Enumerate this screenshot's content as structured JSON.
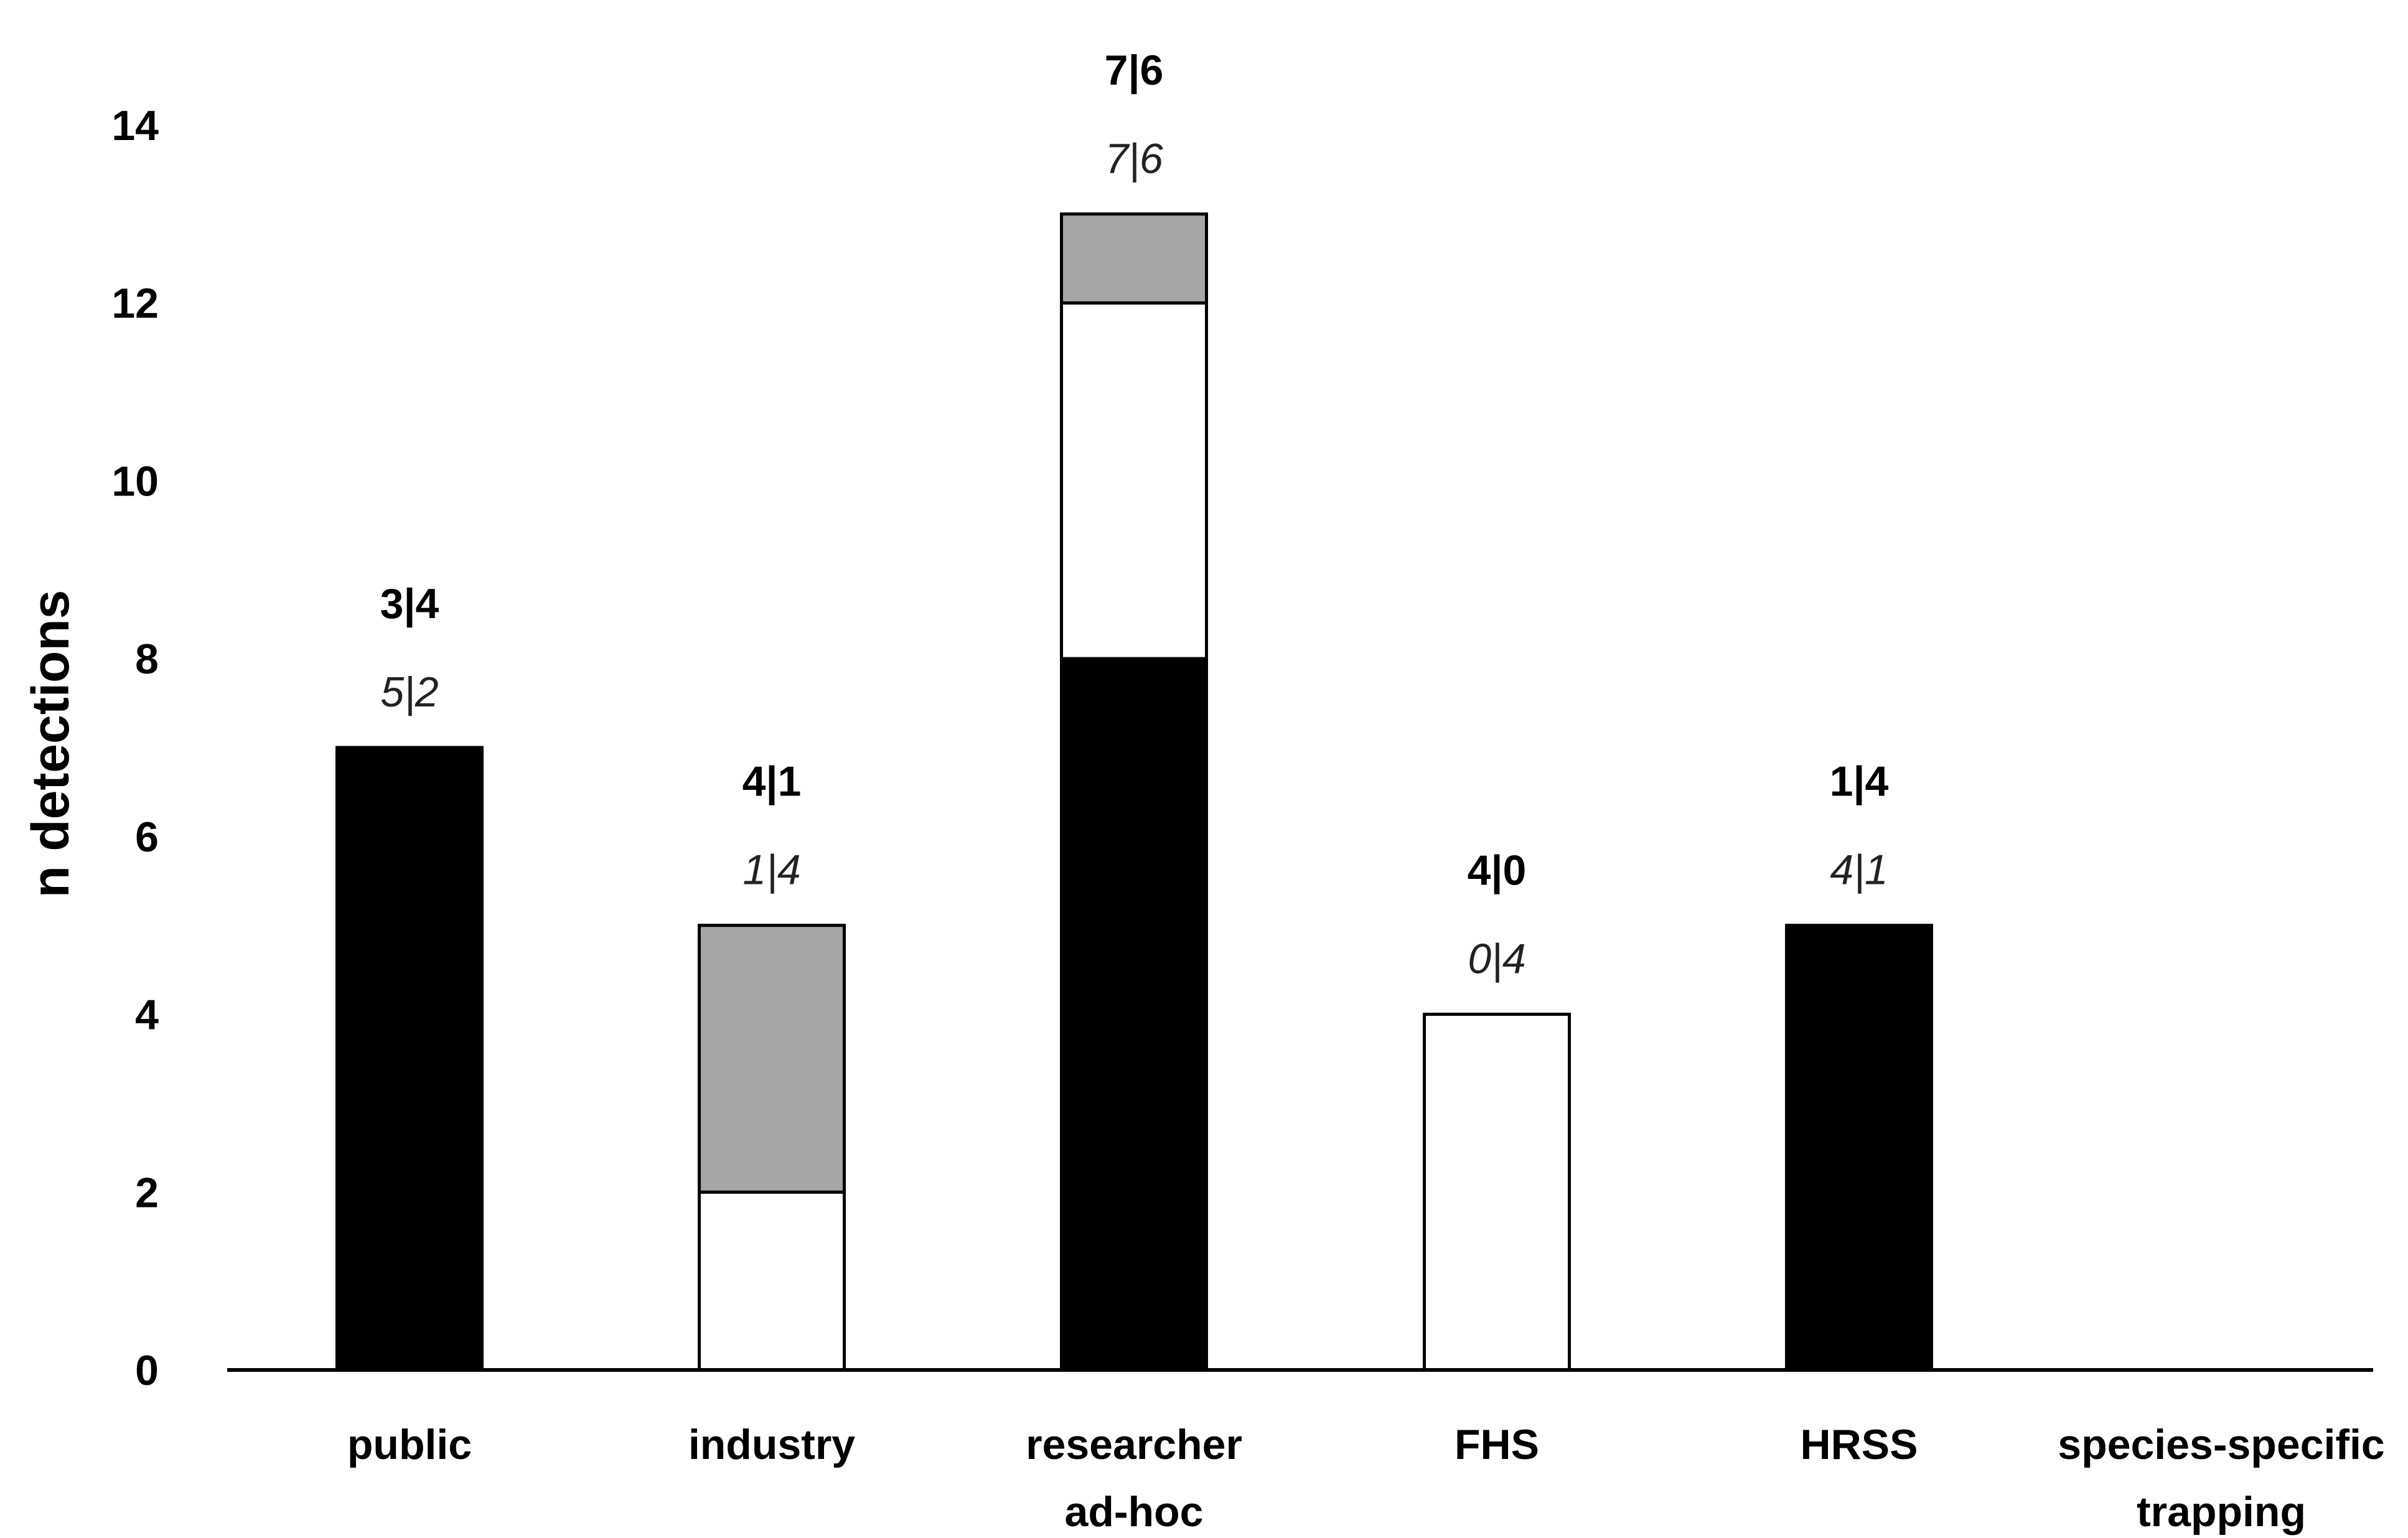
{
  "chart_data": {
    "type": "bar",
    "stacked": true,
    "ylabel": "n detections",
    "xlabel": "",
    "ylim": [
      0,
      14
    ],
    "yticks": [
      0,
      2,
      4,
      6,
      8,
      10,
      12,
      14
    ],
    "grid": false,
    "legend": "none",
    "categories": [
      [
        "public"
      ],
      [
        "industry"
      ],
      [
        "researcher",
        "ad-hoc"
      ],
      [
        "FHS"
      ],
      [
        "HRSS"
      ],
      [
        "species-specific",
        "trapping"
      ]
    ],
    "series": [
      {
        "color": "#000000",
        "values": [
          7,
          0,
          8,
          0,
          5,
          0
        ]
      },
      {
        "color": "#ffffff",
        "values": [
          0,
          2,
          4,
          4,
          0,
          0
        ]
      },
      {
        "color": "#a6a6a6",
        "values": [
          0,
          3,
          1,
          0,
          0,
          0
        ]
      }
    ],
    "annotations": [
      {
        "bold": "3|4",
        "italic": "5|2"
      },
      {
        "bold": "4|1",
        "italic": "1|4"
      },
      {
        "bold": "7|6",
        "italic": "7|6"
      },
      {
        "bold": "4|0",
        "italic": "0|4"
      },
      {
        "bold": "1|4",
        "italic": "4|1"
      },
      {
        "bold": "",
        "italic": ""
      }
    ]
  }
}
